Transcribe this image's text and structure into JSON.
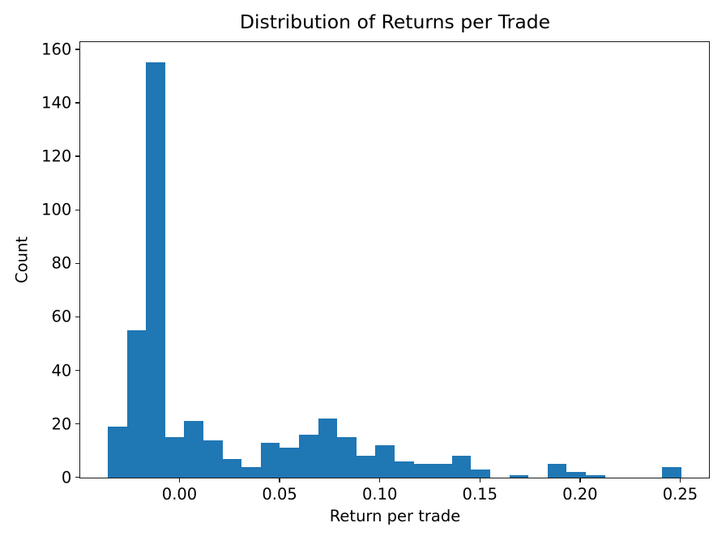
{
  "chart_data": {
    "type": "bar",
    "subtype": "histogram",
    "title": "Distribution of Returns per Trade",
    "xlabel": "Return per trade",
    "ylabel": "Count",
    "bar_color": "#1f77b4",
    "axis_color": "#1a1a1a",
    "grid": "off",
    "legend": "none",
    "bins": 30,
    "bin_start": -0.0358,
    "bin_width": 0.009547,
    "counts": [
      19,
      55,
      155,
      15,
      21,
      14,
      7,
      4,
      13,
      11,
      16,
      22,
      15,
      8,
      12,
      6,
      5,
      5,
      8,
      3,
      0,
      1,
      0,
      5,
      2,
      1,
      0,
      0,
      0,
      4
    ],
    "xlim": [
      -0.04944,
      0.2645
    ],
    "ylim": [
      0,
      162.75
    ],
    "xticks": {
      "values": [
        0.0,
        0.05,
        0.1,
        0.15,
        0.2,
        0.25
      ],
      "labels": [
        "0.00",
        "0.05",
        "0.10",
        "0.15",
        "0.20",
        "0.25"
      ]
    },
    "yticks": {
      "values": [
        0,
        20,
        40,
        60,
        80,
        100,
        120,
        140,
        160
      ],
      "labels": [
        "0",
        "20",
        "40",
        "60",
        "80",
        "100",
        "120",
        "140",
        "160"
      ]
    }
  }
}
